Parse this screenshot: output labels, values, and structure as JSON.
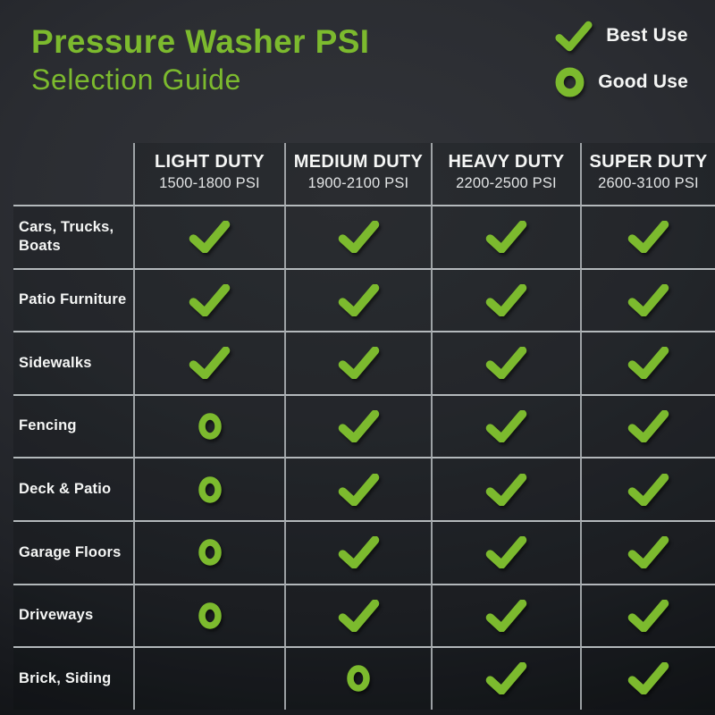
{
  "title": {
    "line1": "Pressure Washer PSI",
    "line2": "Selection Guide"
  },
  "legend": [
    {
      "icon": "check-icon",
      "label": "Best Use"
    },
    {
      "icon": "circle-icon",
      "label": "Good Use"
    }
  ],
  "colors": {
    "green": "#7cba2e",
    "text": "#f5f6f5",
    "grid_line": "#c6c9cb",
    "background_dark": "#0b0d10"
  },
  "chart_data": {
    "type": "table",
    "title": "Pressure Washer PSI Selection Guide",
    "legend_meaning": {
      "check": "Best Use",
      "circle": "Good Use"
    },
    "columns": [
      {
        "label": "LIGHT DUTY",
        "psi": "1500-1800 PSI"
      },
      {
        "label": "MEDIUM DUTY",
        "psi": "1900-2100 PSI"
      },
      {
        "label": "HEAVY DUTY",
        "psi": "2200-2500 PSI"
      },
      {
        "label": "SUPER DUTY",
        "psi": "2600-3100 PSI"
      }
    ],
    "rows": [
      {
        "label": "Cars, Trucks, Boats",
        "cells": [
          "check",
          "check",
          "check",
          "check"
        ]
      },
      {
        "label": "Patio Furniture",
        "cells": [
          "check",
          "check",
          "check",
          "check"
        ]
      },
      {
        "label": "Sidewalks",
        "cells": [
          "check",
          "check",
          "check",
          "check"
        ]
      },
      {
        "label": "Fencing",
        "cells": [
          "circle",
          "check",
          "check",
          "check"
        ]
      },
      {
        "label": "Deck & Patio",
        "cells": [
          "circle",
          "check",
          "check",
          "check"
        ]
      },
      {
        "label": "Garage Floors",
        "cells": [
          "circle",
          "check",
          "check",
          "check"
        ]
      },
      {
        "label": "Driveways",
        "cells": [
          "circle",
          "check",
          "check",
          "check"
        ]
      },
      {
        "label": "Brick, Siding",
        "cells": [
          "none",
          "circle",
          "check",
          "check"
        ]
      }
    ]
  }
}
